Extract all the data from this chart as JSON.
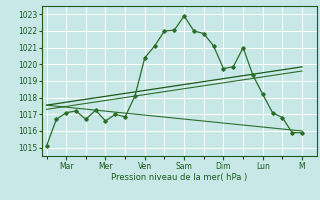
{
  "title": "",
  "xlabel": "Pression niveau de la mer( hPa )",
  "ylabel": "",
  "bg_color": "#c8e8e8",
  "grid_color": "#b0d8d8",
  "line_color": "#2a6e2a",
  "line_color2": "#1a5a1a",
  "ylim": [
    1014.5,
    1023.5
  ],
  "yticks": [
    1015,
    1016,
    1017,
    1018,
    1019,
    1020,
    1021,
    1022,
    1023
  ],
  "day_names": [
    "Mar",
    "Mer",
    "Ven",
    "Sam",
    "Dim",
    "Lun",
    "M"
  ],
  "day_positions": [
    2,
    6,
    10,
    14,
    18,
    22,
    26
  ],
  "xlim": [
    -0.5,
    27.5
  ],
  "series1": {
    "x": [
      0,
      1,
      2,
      3,
      4,
      5,
      6,
      7,
      8,
      9,
      10,
      11,
      12,
      13,
      14,
      15,
      16,
      17,
      18,
      19,
      20,
      21,
      22,
      23,
      24,
      25,
      26
    ],
    "y": [
      1015.1,
      1016.7,
      1017.1,
      1017.2,
      1016.7,
      1017.25,
      1016.6,
      1017.0,
      1016.85,
      1018.1,
      1020.4,
      1021.1,
      1022.0,
      1022.05,
      1022.9,
      1022.0,
      1021.85,
      1021.1,
      1019.75,
      1019.85,
      1021.0,
      1019.35,
      1018.2,
      1017.1,
      1016.8,
      1015.9,
      1015.9
    ]
  },
  "series2": {
    "x": [
      0,
      26
    ],
    "y": [
      1017.55,
      1019.85
    ]
  },
  "series3": {
    "x": [
      0,
      26
    ],
    "y": [
      1017.3,
      1019.6
    ]
  },
  "series4": {
    "x": [
      0,
      26
    ],
    "y": [
      1017.55,
      1016.0
    ]
  }
}
